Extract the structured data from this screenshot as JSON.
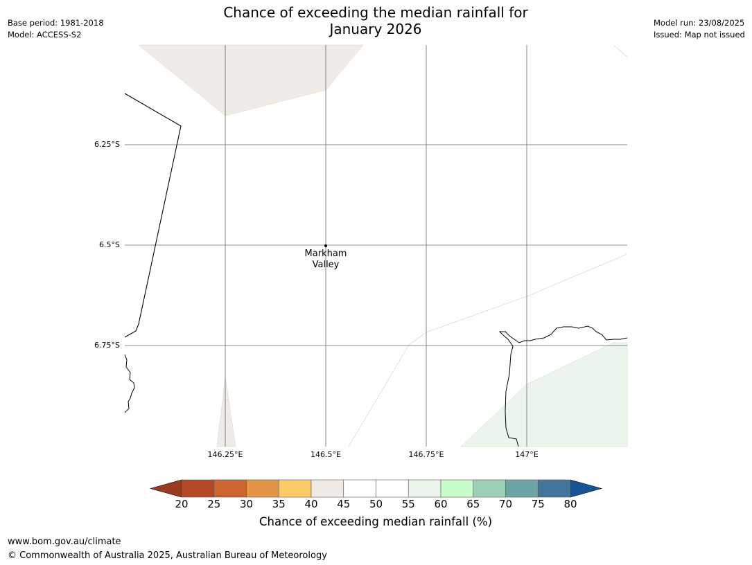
{
  "header": {
    "title_line1": "Chance of exceeding the median rainfall for",
    "title_line2": "January 2026",
    "base_period": "Base period: 1981-2018",
    "model": "Model: ACCESS-S2",
    "model_run": "Model run: 23/08/2025",
    "issued": "Issued: Map not issued"
  },
  "map": {
    "latitude_labels": [
      "6.25°S",
      "6.5°S",
      "6.75°S"
    ],
    "longitude_labels": [
      "146.25°E",
      "146.5°E",
      "146.75°E",
      "147°E"
    ],
    "place_name_line1": "Markham",
    "place_name_line2": "Valley",
    "region_colors": {
      "40-45": "#f0ebe6",
      "55-60": "#ebf5eb"
    }
  },
  "legend": {
    "label": "Chance of exceeding median rainfall (%)",
    "ticks": [
      "20",
      "25",
      "30",
      "35",
      "40",
      "45",
      "50",
      "55",
      "60",
      "65",
      "70",
      "75",
      "80"
    ],
    "under_color": "#9a3a20",
    "over_color": "#155494",
    "colors": [
      "#b44726",
      "#cc6530",
      "#e39545",
      "#fdcb66",
      "#f0ebe6",
      "#ffffff",
      "#ffffff",
      "#ebf5eb",
      "#c8fcc8",
      "#9dcfb7",
      "#6ea4a6",
      "#41769a"
    ]
  },
  "footer": {
    "url": "www.bom.gov.au/climate",
    "copyright": "© Commonwealth of Australia 2025, Australian Bureau of Meteorology"
  }
}
